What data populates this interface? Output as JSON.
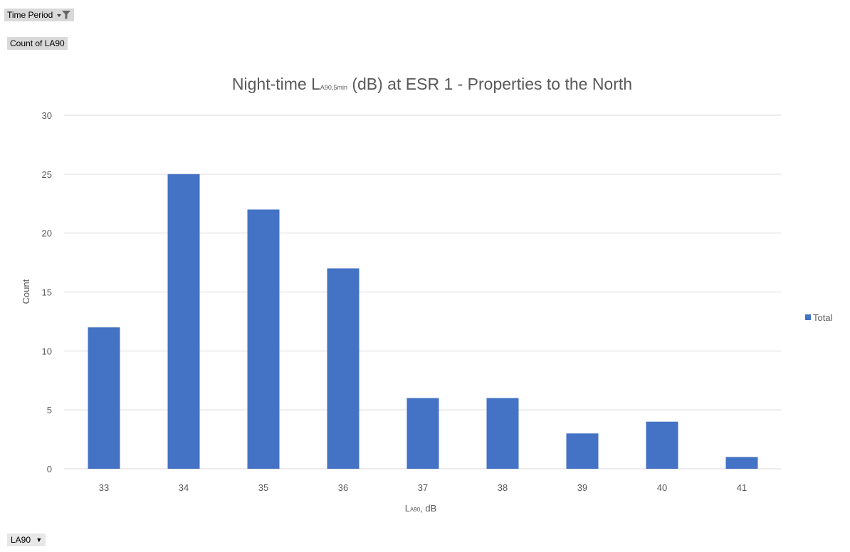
{
  "pivot": {
    "filter_field": "Time Period",
    "values_field": "Count of LA90",
    "axis_field": "LA90"
  },
  "chart_data": {
    "type": "bar",
    "title": {
      "main_before": "Night-time ",
      "L": "L",
      "sub": "A90,5min",
      "main_after": " (dB) at ESR 1 - Properties to the North"
    },
    "xlabel": {
      "L": "L",
      "sub": "A90",
      "rest": ", dB"
    },
    "ylabel": "Count",
    "categories": [
      "33",
      "34",
      "35",
      "36",
      "37",
      "38",
      "39",
      "40",
      "41"
    ],
    "series": [
      {
        "name": "Total",
        "color": "#4472c4",
        "values": [
          12,
          25,
          22,
          17,
          6,
          6,
          3,
          4,
          1
        ]
      }
    ],
    "ylim": [
      0,
      30
    ],
    "yticks": [
      0,
      5,
      10,
      15,
      20,
      25,
      30
    ],
    "grid": true,
    "legend": "right",
    "gridline_color": "#d9d9d9"
  }
}
